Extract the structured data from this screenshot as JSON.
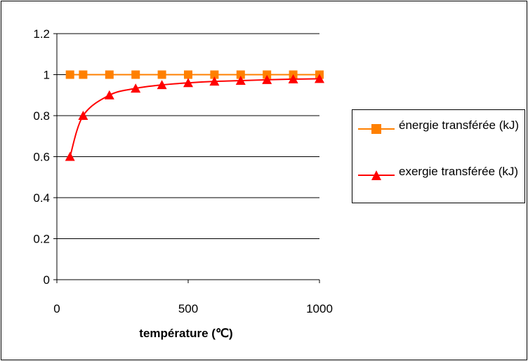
{
  "chart_data": {
    "type": "line",
    "xlabel": "température (℃)",
    "ylabel": "",
    "xlim": [
      0,
      1000
    ],
    "ylim": [
      0,
      1.2
    ],
    "xticks": [
      "0",
      "500",
      "1000"
    ],
    "yticks": [
      "0",
      "0.2",
      "0.4",
      "0.6",
      "0.8",
      "1",
      "1.2"
    ],
    "grid": "horizontal",
    "legend_position": "right",
    "series": [
      {
        "name": "énergie transférée (kJ)",
        "color": "#ff8000",
        "marker": "square",
        "x": [
          50,
          100,
          200,
          300,
          400,
          500,
          600,
          700,
          800,
          900,
          1000
        ],
        "y": [
          1,
          1,
          1,
          1,
          1,
          1,
          1,
          1,
          1,
          1,
          1
        ]
      },
      {
        "name": "exergie transférée (kJ)",
        "color": "#ff0000",
        "marker": "triangle",
        "x": [
          50,
          100,
          200,
          300,
          400,
          500,
          600,
          700,
          800,
          900,
          1000
        ],
        "y": [
          0.6,
          0.8,
          0.9,
          0.933,
          0.95,
          0.96,
          0.967,
          0.971,
          0.975,
          0.978,
          0.98
        ]
      }
    ]
  }
}
